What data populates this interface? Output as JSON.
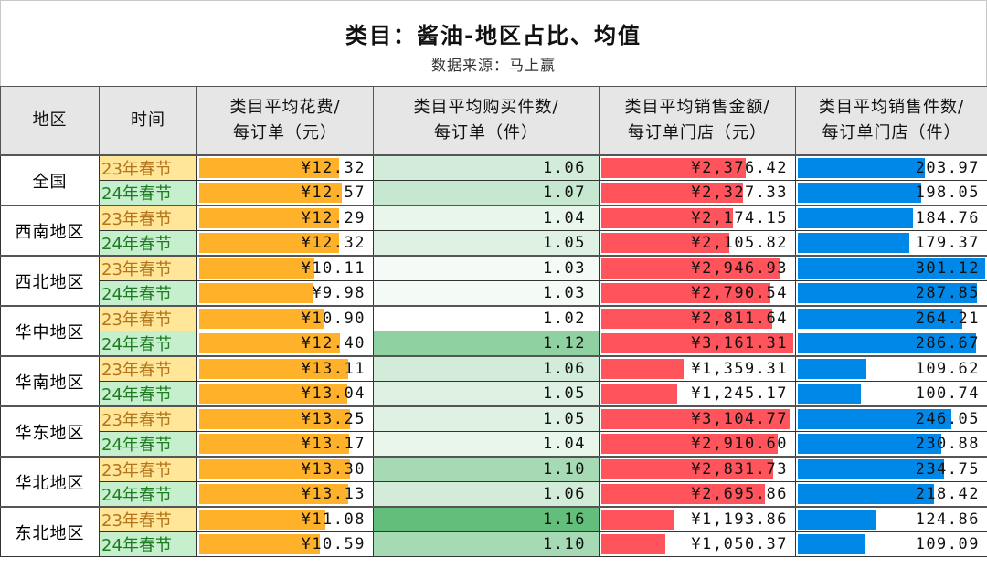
{
  "title": "类目：酱油-地区占比、均值",
  "subtitle": "数据来源：马上赢",
  "colors": {
    "avg_spend": "#ffb12a",
    "sales_amount": "#ff545c",
    "sales_count": "#0088e8",
    "qty_low": "#ffffff",
    "qty_high": "#63be7b",
    "p23_bg": "#ffe699",
    "p24_bg": "#c6efce"
  },
  "headers": [
    "地区",
    "时间",
    "类目平均花费/\n每订单（元）",
    "类目平均购买件数/\n每订单（件）",
    "类目平均销售金额/\n每订单门店（元）",
    "类目平均销售件数/\n每订单门店（件）"
  ],
  "regions": [
    {
      "name": "全国",
      "rows": [
        {
          "period": "23年春节",
          "spend": "¥12.32",
          "qty": "1.06",
          "amount": "¥2,376.42",
          "count": "203.97"
        },
        {
          "period": "24年春节",
          "spend": "¥12.57",
          "qty": "1.07",
          "amount": "¥2,327.33",
          "count": "198.05"
        }
      ]
    },
    {
      "name": "西南地区",
      "rows": [
        {
          "period": "23年春节",
          "spend": "¥12.29",
          "qty": "1.04",
          "amount": "¥2,174.15",
          "count": "184.76"
        },
        {
          "period": "24年春节",
          "spend": "¥12.32",
          "qty": "1.05",
          "amount": "¥2,105.82",
          "count": "179.37"
        }
      ]
    },
    {
      "name": "西北地区",
      "rows": [
        {
          "period": "23年春节",
          "spend": "¥10.11",
          "qty": "1.03",
          "amount": "¥2,946.93",
          "count": "301.12"
        },
        {
          "period": "24年春节",
          "spend": "¥9.98",
          "qty": "1.03",
          "amount": "¥2,790.54",
          "count": "287.85"
        }
      ]
    },
    {
      "name": "华中地区",
      "rows": [
        {
          "period": "23年春节",
          "spend": "¥10.90",
          "qty": "1.02",
          "amount": "¥2,811.64",
          "count": "264.21"
        },
        {
          "period": "24年春节",
          "spend": "¥12.40",
          "qty": "1.12",
          "amount": "¥3,161.31",
          "count": "286.67"
        }
      ]
    },
    {
      "name": "华南地区",
      "rows": [
        {
          "period": "23年春节",
          "spend": "¥13.11",
          "qty": "1.06",
          "amount": "¥1,359.31",
          "count": "109.62"
        },
        {
          "period": "24年春节",
          "spend": "¥13.04",
          "qty": "1.05",
          "amount": "¥1,245.17",
          "count": "100.74"
        }
      ]
    },
    {
      "name": "华东地区",
      "rows": [
        {
          "period": "23年春节",
          "spend": "¥13.25",
          "qty": "1.05",
          "amount": "¥3,104.77",
          "count": "246.05"
        },
        {
          "period": "24年春节",
          "spend": "¥13.17",
          "qty": "1.04",
          "amount": "¥2,910.60",
          "count": "230.88"
        }
      ]
    },
    {
      "name": "华北地区",
      "rows": [
        {
          "period": "23年春节",
          "spend": "¥13.30",
          "qty": "1.10",
          "amount": "¥2,831.73",
          "count": "234.75"
        },
        {
          "period": "24年春节",
          "spend": "¥13.13",
          "qty": "1.06",
          "amount": "¥2,695.86",
          "count": "218.42"
        }
      ]
    },
    {
      "name": "东北地区",
      "rows": [
        {
          "period": "23年春节",
          "spend": "¥11.08",
          "qty": "1.16",
          "amount": "¥1,193.86",
          "count": "124.86"
        },
        {
          "period": "24年春节",
          "spend": "¥10.59",
          "qty": "1.10",
          "amount": "¥1,050.37",
          "count": "109.09"
        }
      ]
    }
  ]
}
